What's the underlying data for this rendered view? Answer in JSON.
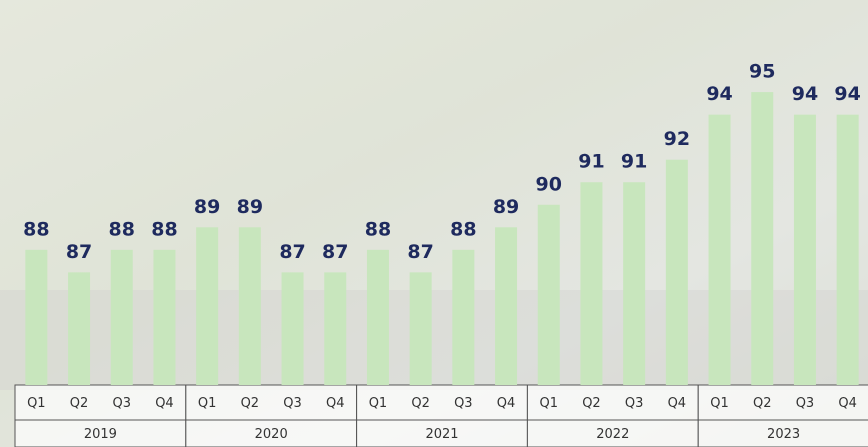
{
  "chart_data": {
    "type": "bar",
    "color": "#c8e6bd",
    "label_color": "#1e2a5e",
    "ylim": [
      82,
      99
    ],
    "groups": [
      {
        "name": "2019",
        "categories": [
          "Q1",
          "Q2",
          "Q3",
          "Q4"
        ],
        "values": [
          88,
          87,
          88,
          88
        ]
      },
      {
        "name": "2020",
        "categories": [
          "Q1",
          "Q2",
          "Q3",
          "Q4"
        ],
        "values": [
          89,
          89,
          87,
          87
        ]
      },
      {
        "name": "2021",
        "categories": [
          "Q1",
          "Q2",
          "Q3",
          "Q4"
        ],
        "values": [
          88,
          87,
          88,
          89
        ]
      },
      {
        "name": "2022",
        "categories": [
          "Q1",
          "Q2",
          "Q3",
          "Q4"
        ],
        "values": [
          90,
          91,
          91,
          92
        ]
      },
      {
        "name": "2023",
        "categories": [
          "Q1",
          "Q2",
          "Q3",
          "Q4"
        ],
        "values": [
          94,
          95,
          94,
          94
        ]
      }
    ]
  }
}
